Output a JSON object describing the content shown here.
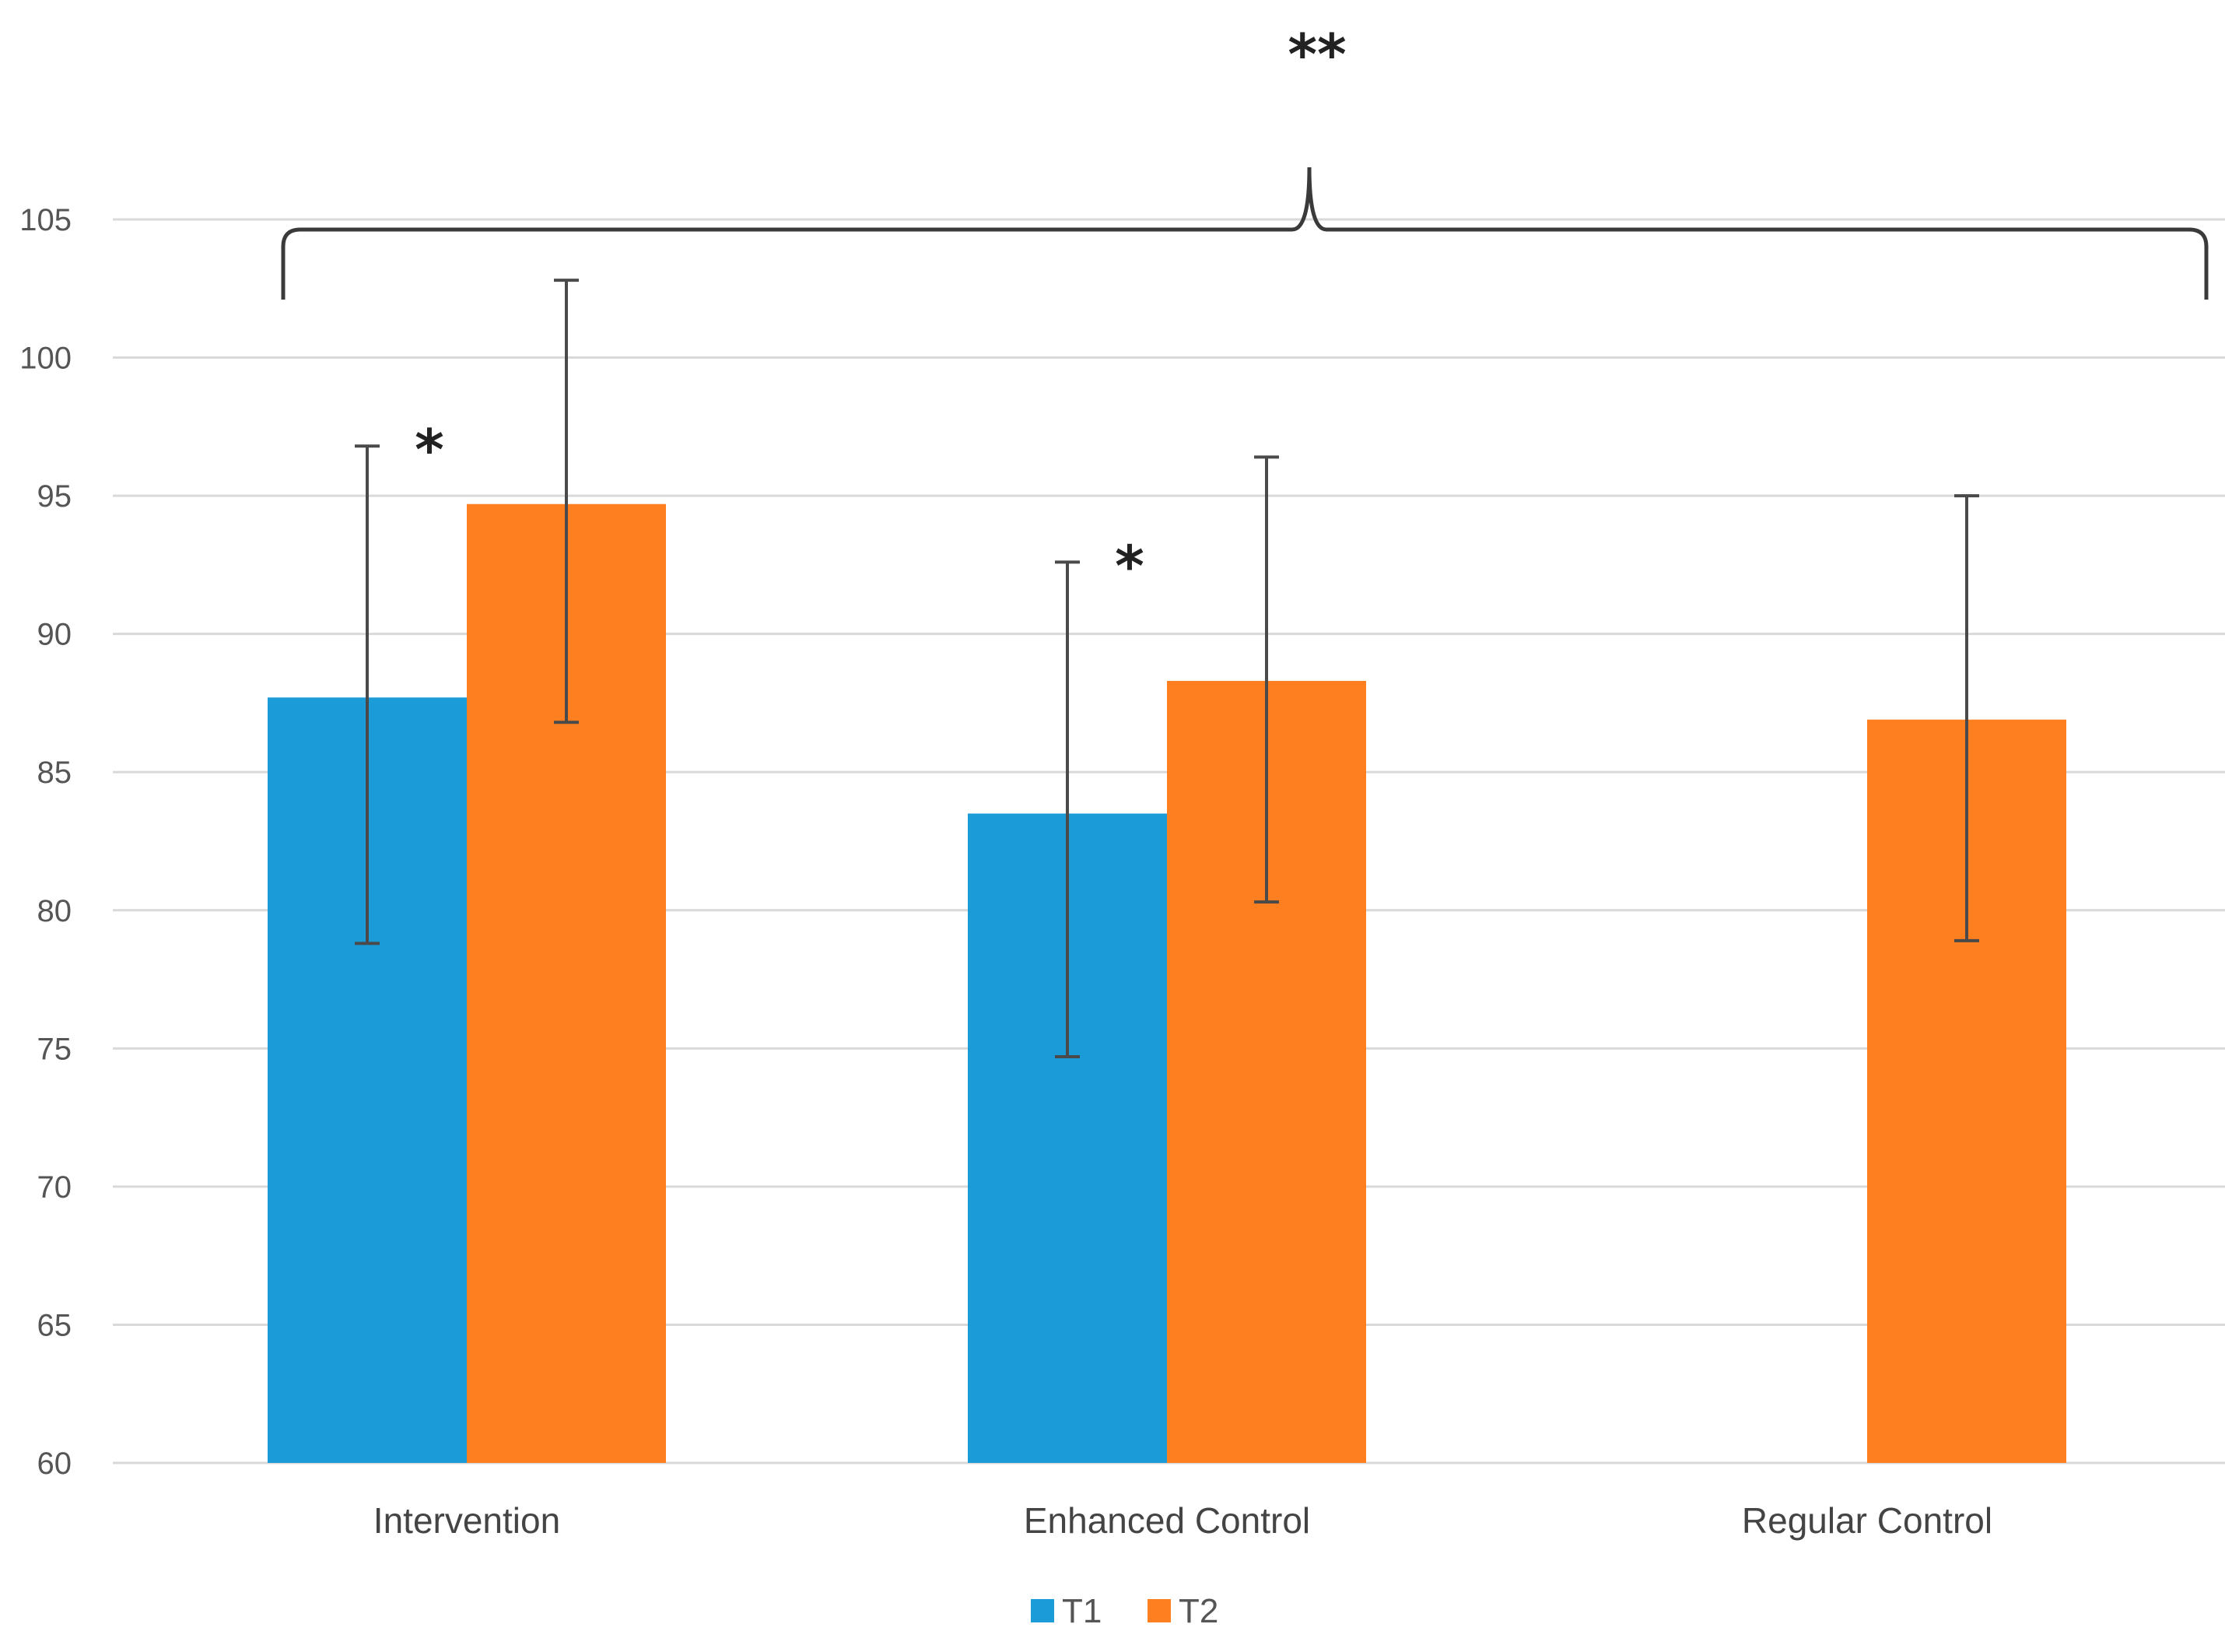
{
  "chart_data": {
    "type": "bar",
    "title": "",
    "xlabel": "",
    "ylabel": "",
    "ylim": [
      60,
      105
    ],
    "yticks": [
      60,
      65,
      70,
      75,
      80,
      85,
      90,
      95,
      100,
      105
    ],
    "grid": true,
    "legend_position": "bottom-center",
    "categories": [
      "Intervention",
      "Enhanced Control",
      "Regular Control"
    ],
    "series": [
      {
        "name": "T1",
        "color": "#1b9bd7",
        "values": [
          87.7,
          83.5,
          null
        ],
        "error_low": [
          78.8,
          74.7,
          null
        ],
        "error_high": [
          96.8,
          92.6,
          null
        ]
      },
      {
        "name": "T2",
        "color": "#fd7f20",
        "values": [
          94.7,
          88.3,
          86.9
        ],
        "error_low": [
          86.8,
          80.3,
          78.9
        ],
        "error_high": [
          102.8,
          96.4,
          95.0
        ]
      }
    ],
    "annotations": {
      "single_markers": [
        {
          "category": "Intervention",
          "label": "*"
        },
        {
          "category": "Enhanced Control",
          "label": "*"
        }
      ],
      "bracket": {
        "from": "Intervention",
        "to": "Regular Control",
        "label": "**"
      }
    }
  }
}
